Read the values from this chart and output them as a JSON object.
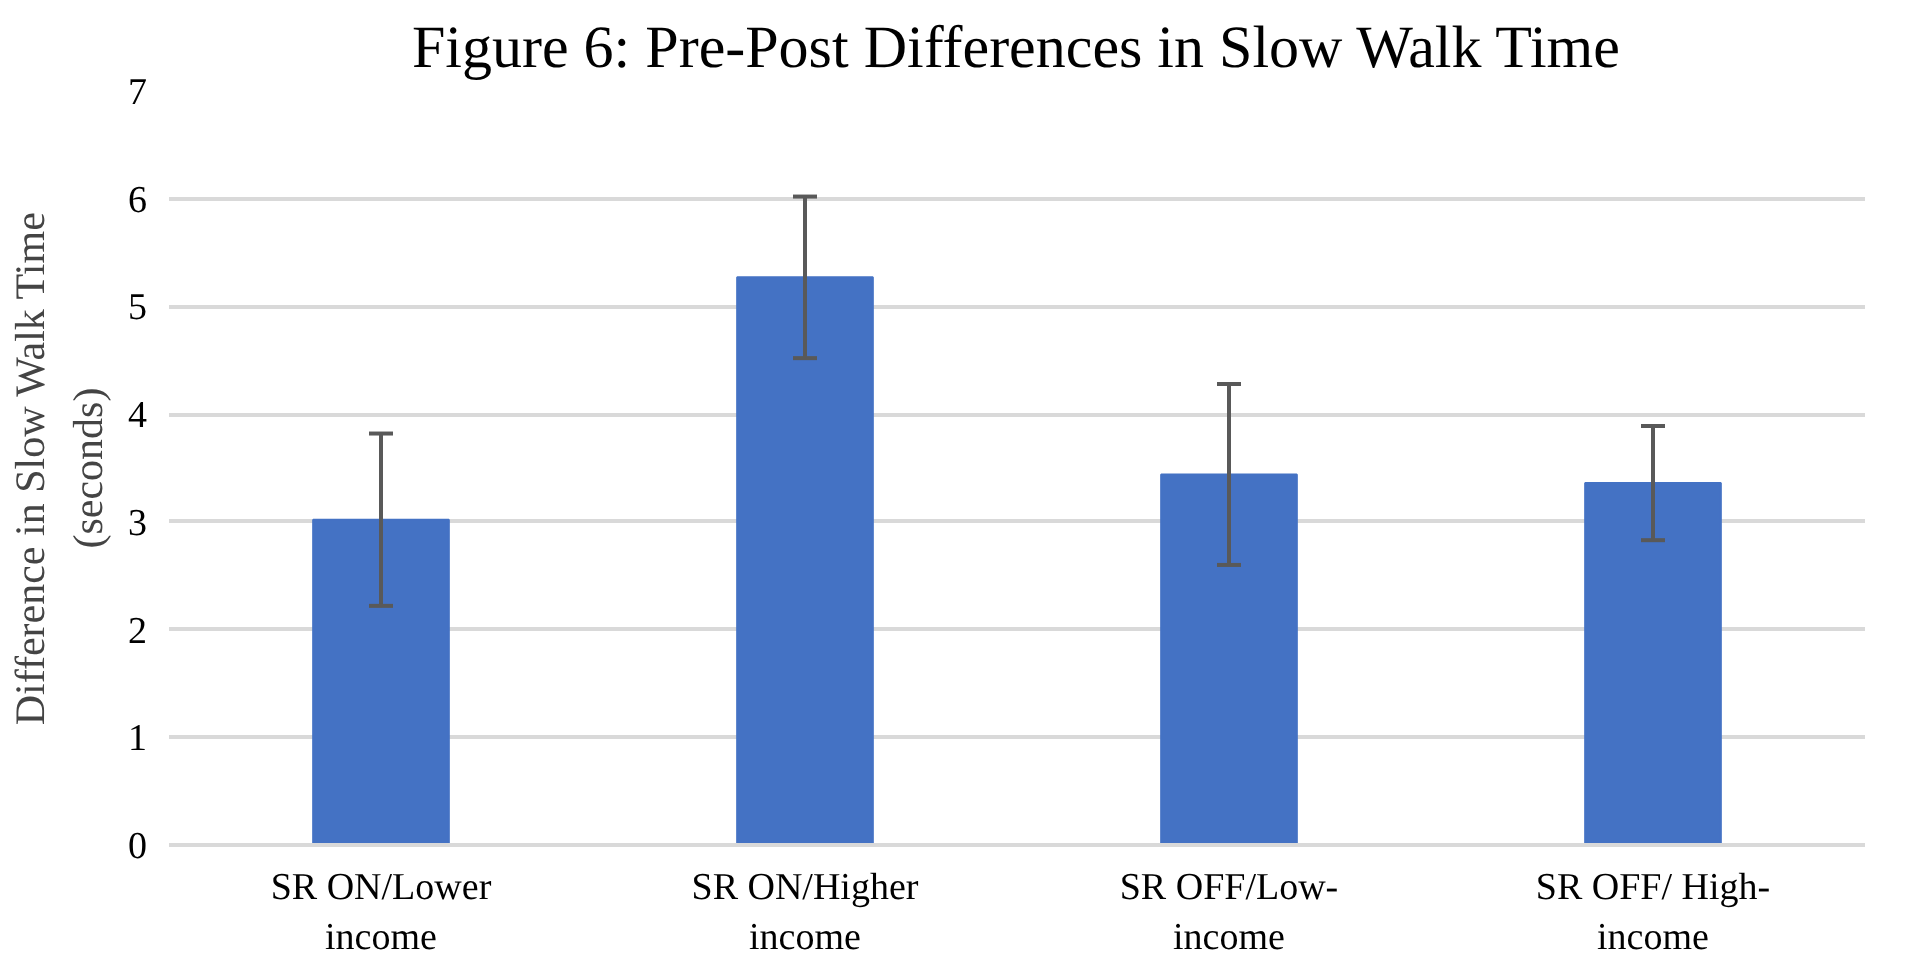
{
  "chart_data": {
    "type": "bar",
    "title": "Figure 6: Pre-Post Differences in Slow Walk Time",
    "ylabel": "Difference in Slow Walk Time (seconds)",
    "categories": [
      "SR ON/Lower income",
      "SR ON/Higher income",
      "SR OFF/Low-income",
      "SR OFF/ High-income"
    ],
    "values": [
      3.02,
      5.27,
      3.44,
      3.36
    ],
    "errors": [
      0.8,
      0.75,
      0.84,
      0.53
    ],
    "color": "#4472c4",
    "ylim": [
      0,
      7
    ],
    "yticks": [
      0,
      1,
      2,
      3,
      4,
      5,
      6,
      7
    ],
    "grid": "y"
  }
}
